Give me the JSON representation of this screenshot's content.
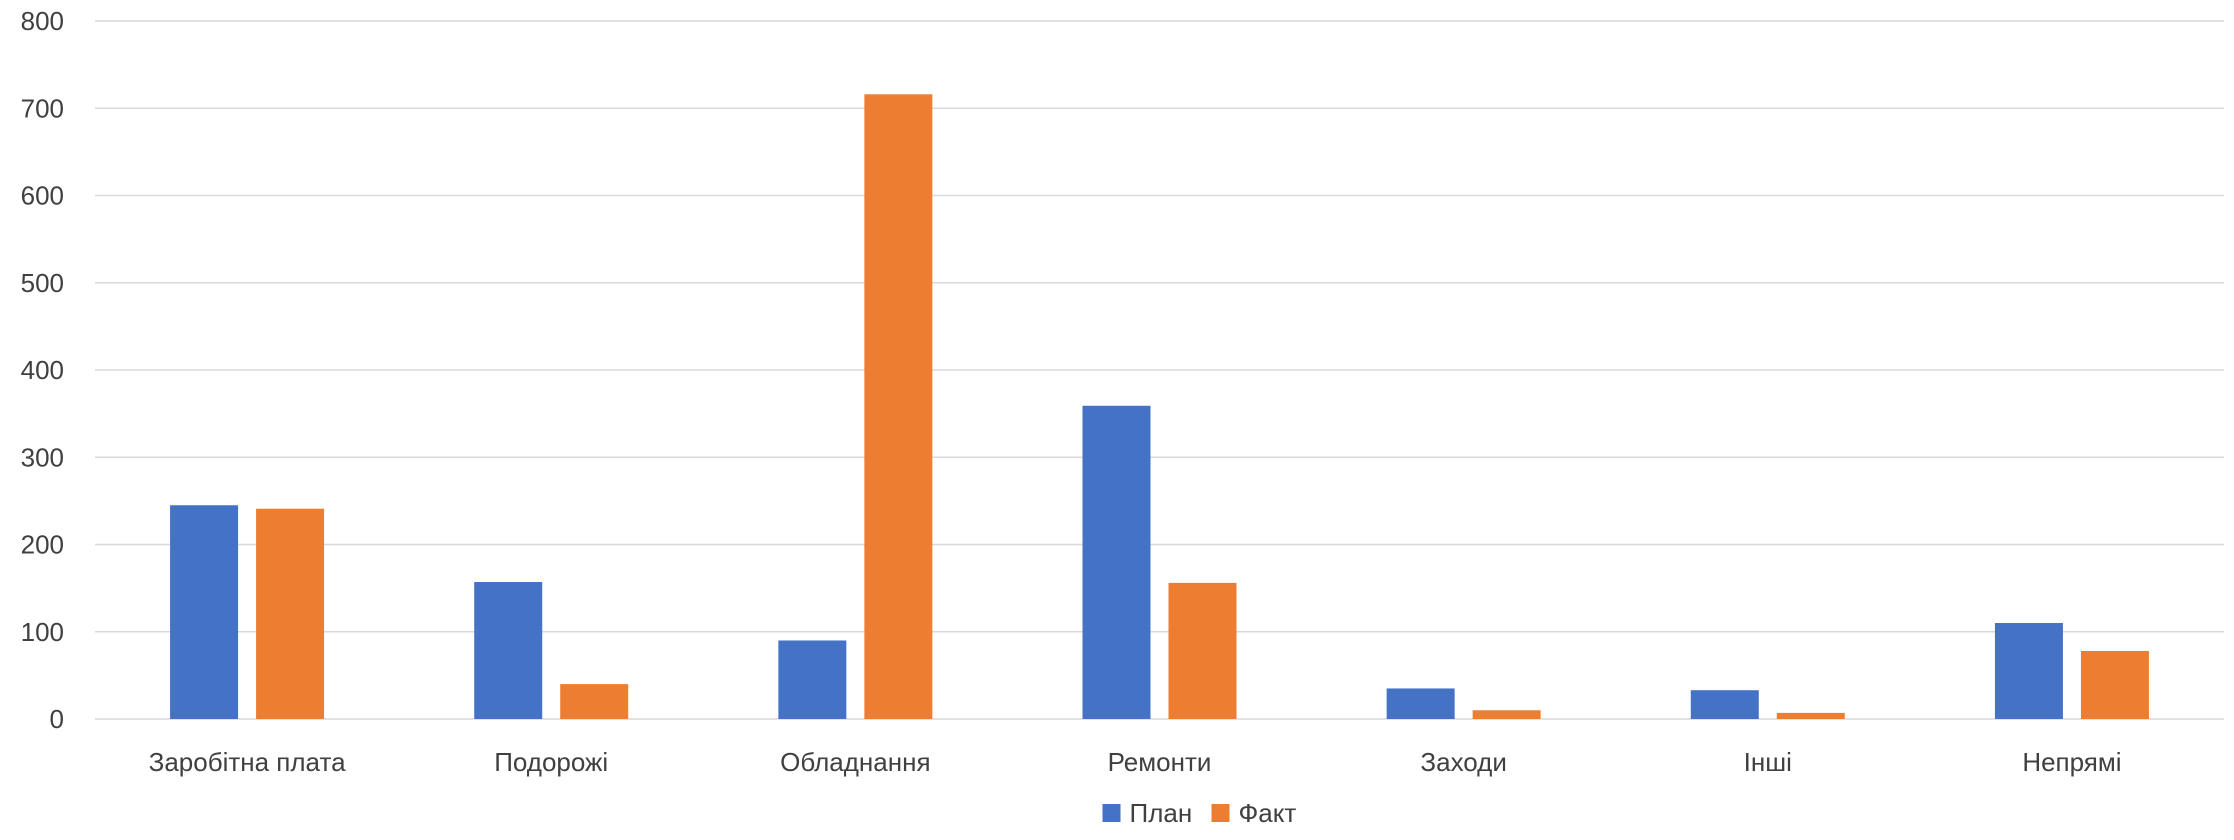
{
  "chart_data": {
    "type": "bar",
    "categories": [
      "Заробітна плата",
      "Подорожі",
      "Обладнання",
      "Ремонти",
      "Заходи",
      "Інші",
      "Непрямі"
    ],
    "series": [
      {
        "name": "План",
        "color": "#4472C4",
        "values": [
          245,
          157,
          90,
          359,
          35,
          33,
          110
        ]
      },
      {
        "name": "Факт",
        "color": "#ED7D31",
        "values": [
          241,
          40,
          716,
          156,
          10,
          7,
          78
        ]
      }
    ],
    "y_ticks": [
      "0",
      "100",
      "200",
      "300",
      "400",
      "500",
      "600",
      "700",
      "800"
    ],
    "ylim": [
      0,
      800
    ],
    "grid": true,
    "legend": "bottom-center",
    "title": "",
    "xlabel": "",
    "ylabel": ""
  }
}
